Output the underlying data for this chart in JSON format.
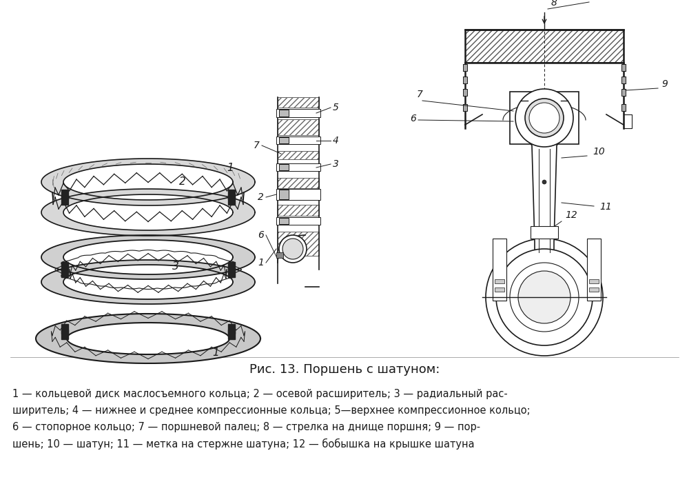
{
  "title": "Рис. 13. Поршень с шатуном:",
  "caption_lines": [
    "1 — кольцевой диск маслосъемного кольца; 2 — осевой расширитель; 3 — радиальный рас-",
    "ширитель; 4 — нижнее и среднее компрессионные кольца; 5—верхнее компрессионное кольцо;",
    "6 — стопорное кольцо; 7 — поршневой палец; 8 — стрелка на днище поршня; 9 — пор-",
    "шень; 10 — шатун; 11 — метка на стержне шатуна; 12 — бобышка на крышке шатуна"
  ],
  "bg_color": "#ffffff",
  "line_color": "#1a1a1a",
  "fig_width": 10.0,
  "fig_height": 7.31,
  "dpi": 100
}
